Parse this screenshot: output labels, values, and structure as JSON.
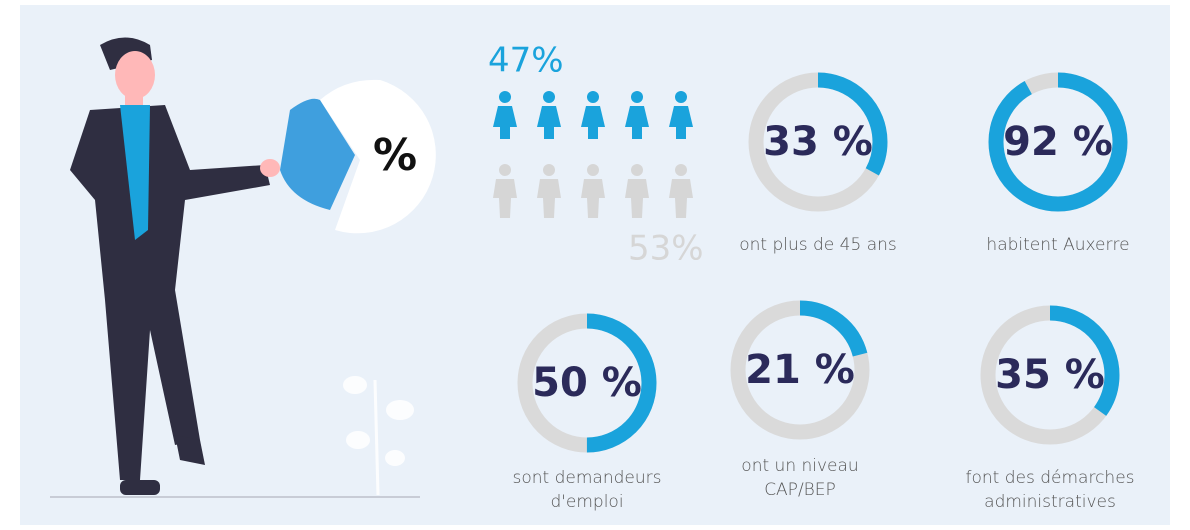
{
  "prop_label": "%",
  "gender": {
    "women_label": "47%",
    "men_label": "53%"
  },
  "stats": [
    {
      "value": 33,
      "value_label": "33 %",
      "caption": [
        "ont plus de 45 ans"
      ]
    },
    {
      "value": 92,
      "value_label": "92 %",
      "caption": [
        "habitent Auxerre"
      ]
    },
    {
      "value": 50,
      "value_label": "50 %",
      "caption": [
        "sont demandeurs",
        "d'emploi"
      ]
    },
    {
      "value": 21,
      "value_label": "21 %",
      "caption": [
        "ont un niveau",
        "CAP/BEP"
      ]
    },
    {
      "value": 35,
      "value_label": "35 %",
      "caption": [
        "font des démarches",
        "administratives"
      ]
    }
  ]
}
